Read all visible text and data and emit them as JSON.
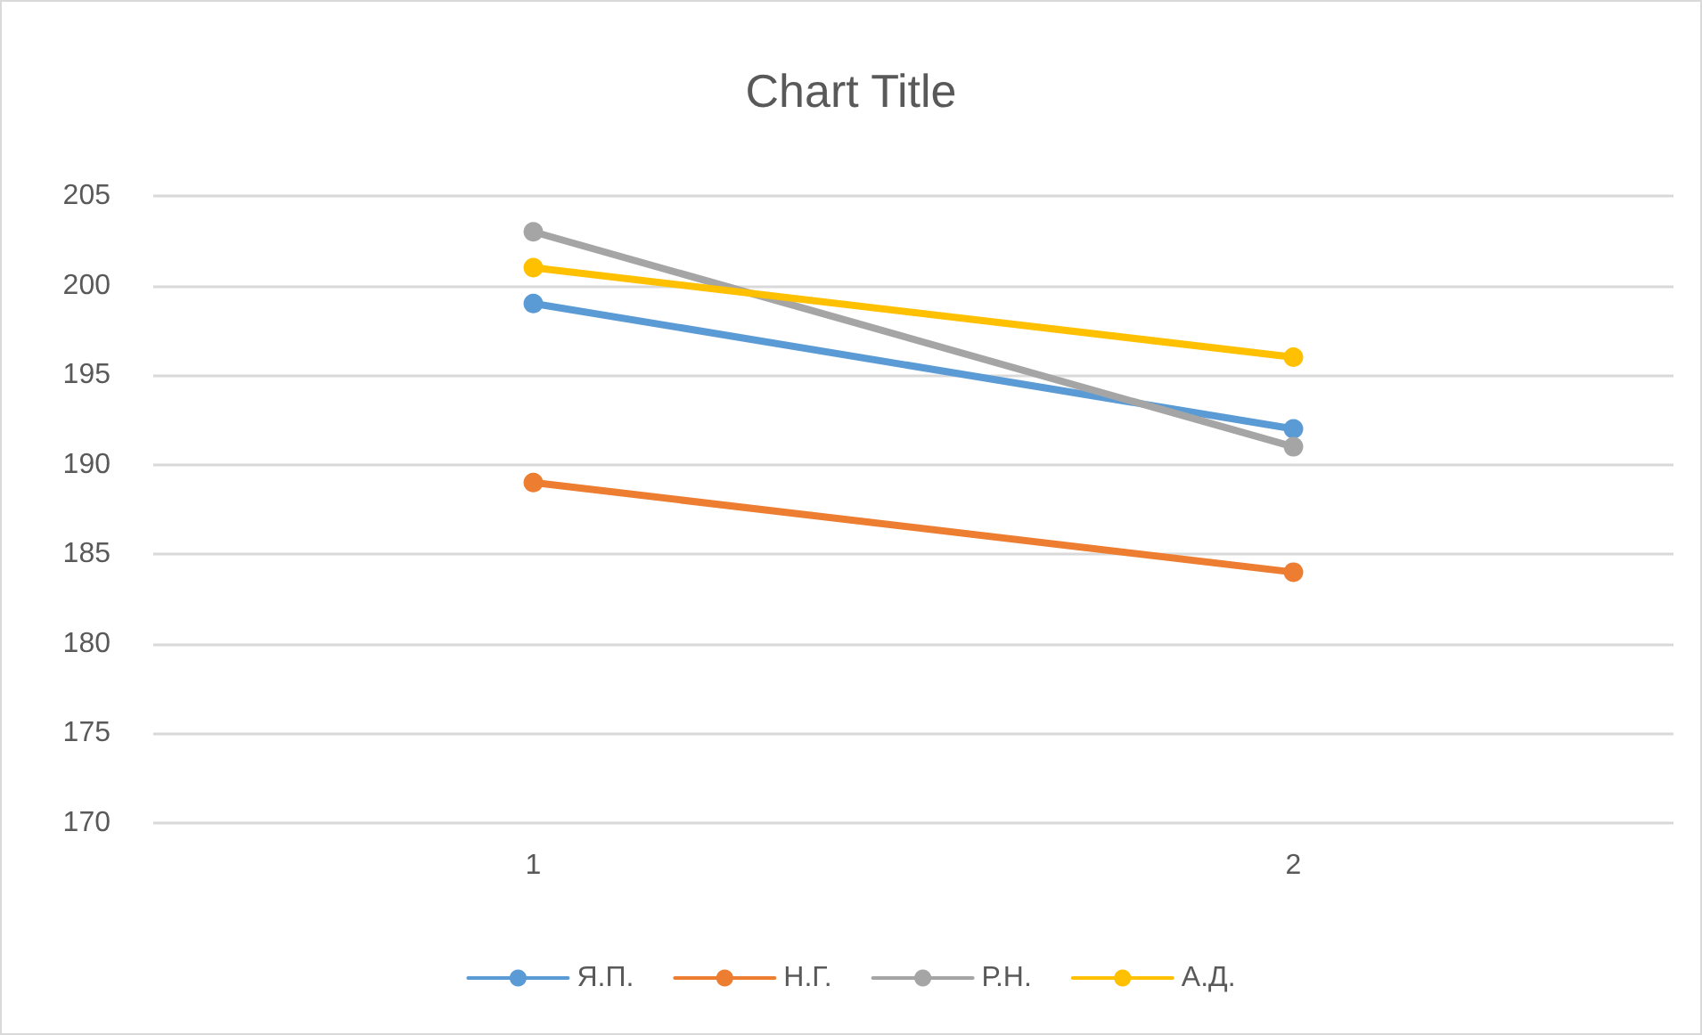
{
  "chart_data": {
    "type": "line",
    "title": "Chart Title",
    "categories": [
      "1",
      "2"
    ],
    "series": [
      {
        "name": "Я.П.",
        "color": "#5b9bd5",
        "values": [
          199,
          192
        ]
      },
      {
        "name": "Н.Г.",
        "color": "#ed7d31",
        "values": [
          189,
          184
        ]
      },
      {
        "name": "Р.Н.",
        "color": "#a5a5a5",
        "values": [
          203,
          191
        ]
      },
      {
        "name": "А.Д.",
        "color": "#ffc000",
        "values": [
          201,
          196
        ]
      }
    ],
    "ylim": [
      170,
      205
    ],
    "yticks": [
      170,
      175,
      180,
      185,
      190,
      195,
      200,
      205
    ],
    "grid": "y",
    "legend": "bottom",
    "marker": "circle",
    "line_style": "solid"
  }
}
